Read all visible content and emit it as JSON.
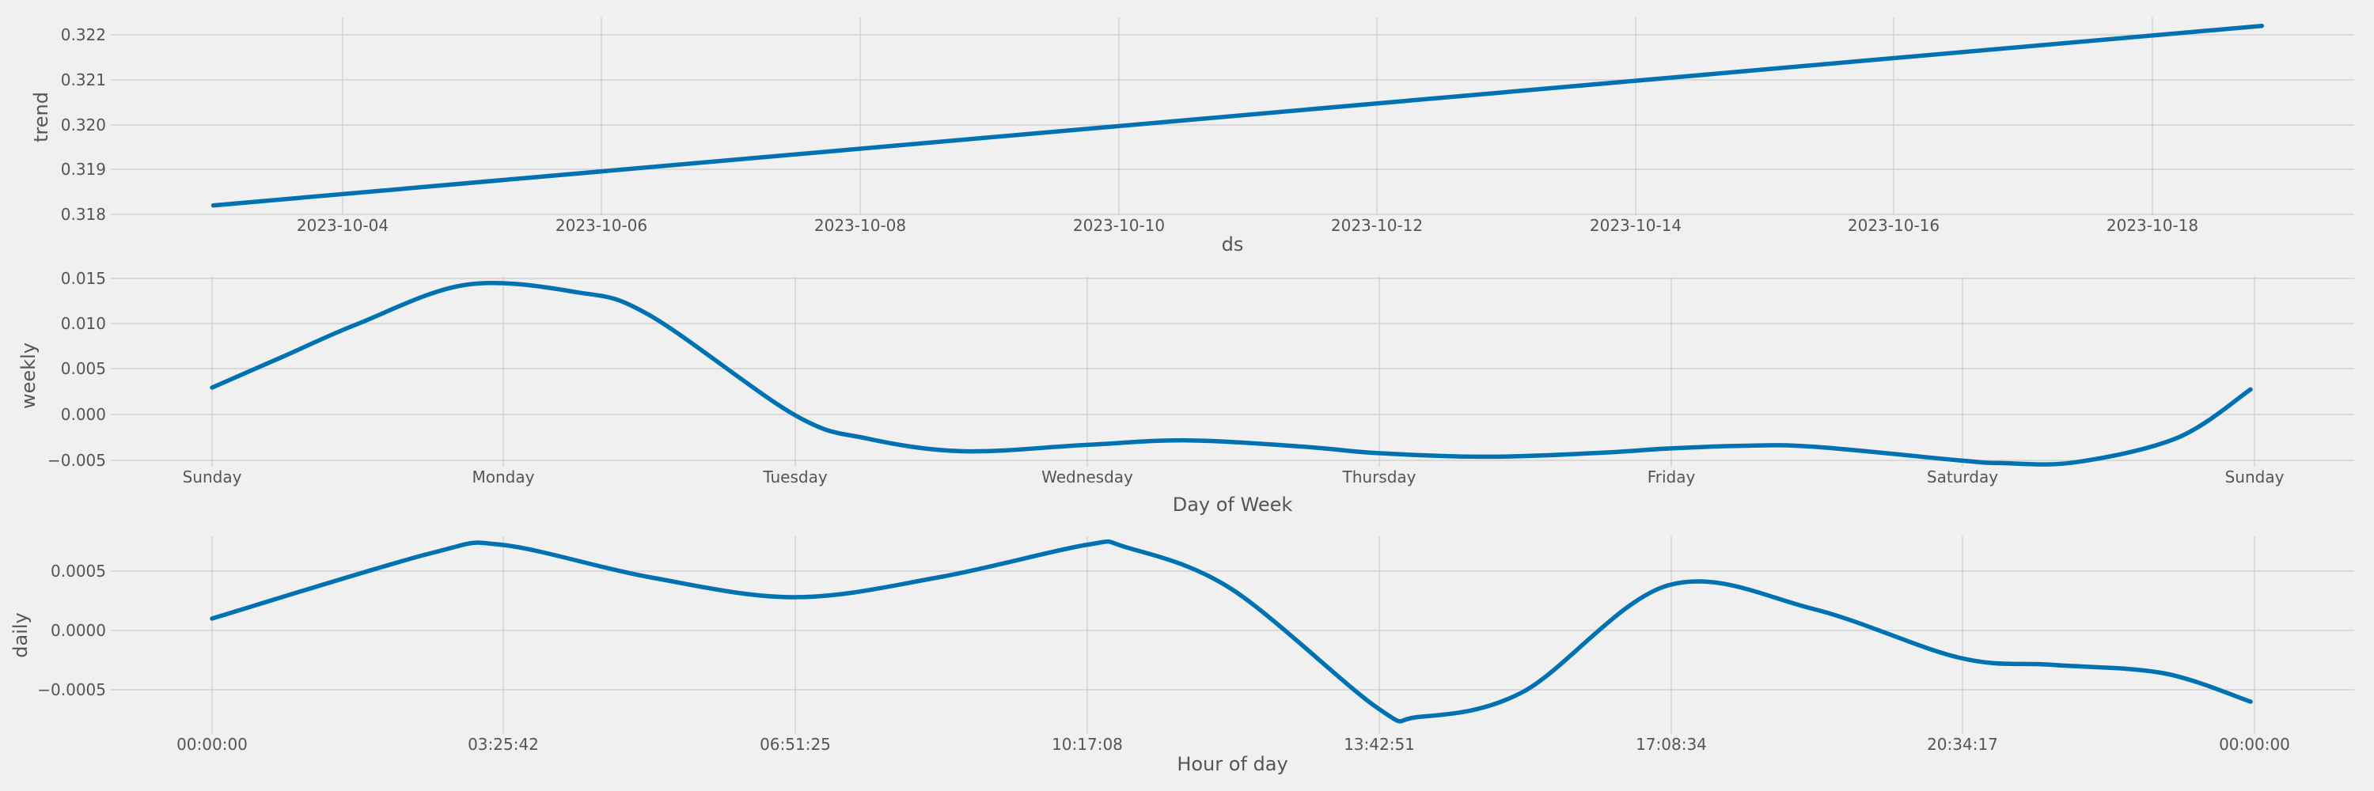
{
  "colors": {
    "background": "#f0f0f0",
    "grid": "#cbcbcb",
    "line": "#0072b2",
    "text": "#555555"
  },
  "chart_data": [
    {
      "type": "line",
      "xlabel": "ds",
      "ylabel": "trend",
      "x_tick_labels": [
        "2023-10-04",
        "2023-10-06",
        "2023-10-08",
        "2023-10-10",
        "2023-10-12",
        "2023-10-14",
        "2023-10-16",
        "2023-10-18"
      ],
      "y_tick_labels": [
        "0.318",
        "0.319",
        "0.320",
        "0.321",
        "0.322"
      ],
      "ylim": [
        0.318,
        0.322
      ],
      "grid": true,
      "series": [
        {
          "x": [
            "2023-10-03",
            "2023-10-18 20:00"
          ],
          "values": [
            0.3182,
            0.3222
          ]
        }
      ]
    },
    {
      "type": "line",
      "xlabel": "Day of Week",
      "ylabel": "weekly",
      "x_tick_labels": [
        "Sunday",
        "Monday",
        "Tuesday",
        "Wednesday",
        "Thursday",
        "Friday",
        "Saturday",
        "Sunday"
      ],
      "y_tick_labels": [
        "0.015",
        "0.010",
        "0.005",
        "0.000",
        "−0.005"
      ],
      "ylim": [
        -0.005,
        0.015
      ],
      "grid": true,
      "series": [
        {
          "x": [
            0,
            0.25,
            0.5,
            0.87,
            1.25,
            1.5,
            2.0,
            2.25,
            2.58,
            3.0,
            3.35,
            3.75,
            4.0,
            4.38,
            4.75,
            5.0,
            5.25,
            5.5,
            6.0,
            6.15,
            6.4,
            6.75,
            7.0
          ],
          "values": [
            0.003,
            0.0065,
            0.01,
            0.0143,
            0.0135,
            0.011,
            0.0,
            -0.0026,
            -0.004,
            -0.0033,
            -0.0028,
            -0.0035,
            -0.0042,
            -0.0046,
            -0.0042,
            -0.0037,
            -0.0034,
            -0.0035,
            -0.005,
            -0.0053,
            -0.0052,
            -0.0025,
            0.0028
          ]
        }
      ]
    },
    {
      "type": "line",
      "xlabel": "Hour of day",
      "ylabel": "daily",
      "x_tick_labels": [
        "00:00:00",
        "03:25:42",
        "06:51:25",
        "10:17:08",
        "13:42:51",
        "17:08:34",
        "20:34:17",
        "00:00:00"
      ],
      "y_tick_labels": [
        "0.0005",
        "0.0000",
        "−0.0005"
      ],
      "ylim": [
        -0.0005,
        0.0005
      ],
      "grid": true,
      "series": [
        {
          "x": [
            0,
            0.75,
            1.0,
            1.5,
            2.0,
            2.5,
            3.0,
            3.14,
            3.5,
            4.0,
            4.14,
            4.5,
            5.0,
            5.5,
            6.0,
            6.32,
            6.7,
            7.0
          ],
          "values": [
            0.0001,
            0.00065,
            0.00072,
            0.00045,
            0.00028,
            0.00045,
            0.00072,
            0.0007,
            0.00035,
            -0.00065,
            -0.00073,
            -0.00052,
            0.00038,
            0.00018,
            -0.00023,
            -0.00029,
            -0.00036,
            -0.0006
          ]
        }
      ]
    }
  ]
}
